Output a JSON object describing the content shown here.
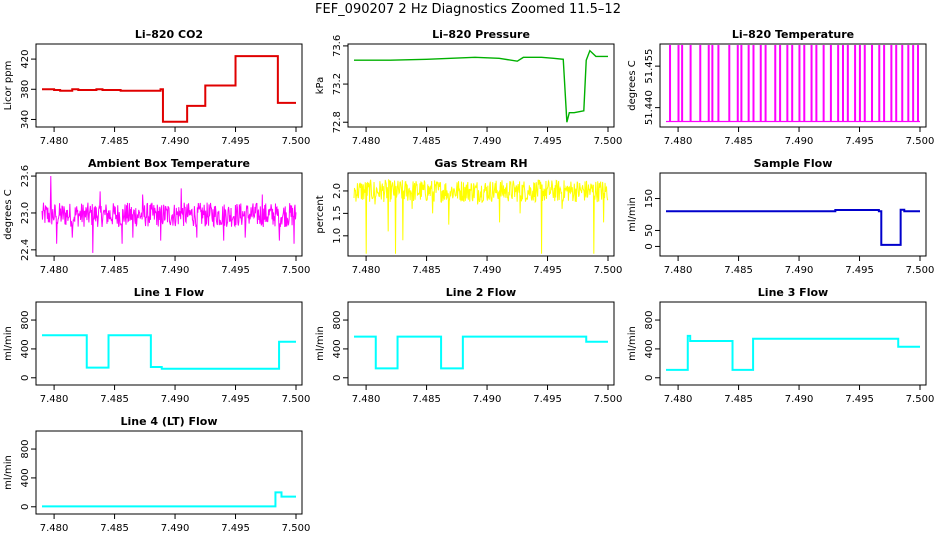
{
  "title": "FEF_090207  2 Hz Diagnostics Zoomed 11.5–12",
  "chart_data": [
    {
      "type": "line",
      "title": "Li–820 CO2",
      "ylabel": "Licor ppm",
      "color": "#e00000",
      "xlim": [
        7.479,
        7.5
      ],
      "xticks": [
        "7.480",
        "7.485",
        "7.490",
        "7.495",
        "7.500"
      ],
      "ylim": [
        330,
        440
      ],
      "yticks": [
        "340",
        "380",
        "420"
      ],
      "series": [
        {
          "mode": "steps",
          "x": [
            7.479,
            7.48,
            7.4805,
            7.4815,
            7.482,
            7.4835,
            7.484,
            7.4855,
            7.486,
            7.4878,
            7.4888,
            7.489,
            7.4898,
            7.491,
            7.4925,
            7.4943,
            7.495,
            7.4982,
            7.4985,
            7.5
          ],
          "y": [
            380,
            379,
            378,
            380,
            379,
            380,
            379,
            378,
            378,
            378,
            380,
            337,
            337,
            358,
            385,
            385,
            424,
            424,
            362,
            362
          ]
        }
      ]
    },
    {
      "type": "line",
      "title": "Li–820 Pressure",
      "ylabel": "kPa",
      "color": "#00b000",
      "xlim": [
        7.479,
        7.5
      ],
      "xticks": [
        "7.480",
        "7.485",
        "7.490",
        "7.495",
        "7.500"
      ],
      "ylim": [
        72.75,
        73.62
      ],
      "yticks": [
        "72.8",
        "73.2",
        "73.6"
      ],
      "series": [
        {
          "mode": "line",
          "x": [
            7.479,
            7.482,
            7.485,
            7.487,
            7.489,
            7.491,
            7.4925,
            7.493,
            7.4945,
            7.4955,
            7.4963,
            7.4966,
            7.4968,
            7.4972,
            7.498,
            7.4982,
            7.4985,
            7.499,
            7.5
          ],
          "y": [
            73.45,
            73.45,
            73.46,
            73.47,
            73.48,
            73.47,
            73.44,
            73.48,
            73.48,
            73.47,
            73.46,
            72.8,
            72.9,
            72.9,
            72.92,
            73.45,
            73.55,
            73.49,
            73.49
          ]
        }
      ]
    },
    {
      "type": "line",
      "title": "Li–820 Temperature",
      "ylabel": "degrees C",
      "color": "#ff00ff",
      "xlim": [
        7.479,
        7.5
      ],
      "xticks": [
        "7.480",
        "7.485",
        "7.490",
        "7.495",
        "7.500"
      ],
      "ylim": [
        51.433,
        51.463
      ],
      "yticks": [
        "51.440",
        "51.455"
      ],
      "series": [
        {
          "mode": "spikes",
          "baseline": 51.435,
          "peak": 51.463,
          "x": [
            7.4793,
            7.48,
            7.4803,
            7.481,
            7.4818,
            7.4825,
            7.4828,
            7.4833,
            7.4842,
            7.4849,
            7.4852,
            7.4858,
            7.4862,
            7.4868,
            7.4872,
            7.488,
            7.4884,
            7.489,
            7.4894,
            7.49,
            7.4904,
            7.491,
            7.4914,
            7.492,
            7.4926,
            7.4932,
            7.4936,
            7.494,
            7.4946,
            7.495,
            7.4954,
            7.496,
            7.4966,
            7.497,
            7.4976,
            7.498,
            7.4985,
            7.499,
            7.4994,
            7.4998
          ]
        }
      ]
    },
    {
      "type": "line",
      "title": "Ambient Box Temperature",
      "ylabel": "degrees C",
      "color": "#ff00ff",
      "xlim": [
        7.479,
        7.5
      ],
      "xticks": [
        "7.480",
        "7.485",
        "7.490",
        "7.495",
        "7.500"
      ],
      "ylim": [
        22.3,
        23.65
      ],
      "yticks": [
        "22.4",
        "23.0",
        "23.6"
      ],
      "series": [
        {
          "mode": "noise",
          "center": 22.97,
          "amplitude": 0.2,
          "outliers": [
            [
              7.4797,
              23.6
            ],
            [
              7.4802,
              22.5
            ],
            [
              7.4815,
              22.6
            ],
            [
              7.4832,
              22.35
            ],
            [
              7.4838,
              23.35
            ],
            [
              7.4856,
              22.5
            ],
            [
              7.4865,
              22.6
            ],
            [
              7.4873,
              23.3
            ],
            [
              7.4888,
              22.55
            ],
            [
              7.4905,
              23.4
            ],
            [
              7.4918,
              22.6
            ],
            [
              7.494,
              22.55
            ],
            [
              7.4958,
              22.6
            ],
            [
              7.4972,
              23.3
            ],
            [
              7.4986,
              22.55
            ],
            [
              7.4998,
              22.5
            ]
          ],
          "x0": 7.479,
          "x1": 7.5
        }
      ]
    },
    {
      "type": "line",
      "title": "Gas Stream RH",
      "ylabel": "percent",
      "color": "#ffff00",
      "xlim": [
        7.479,
        7.5
      ],
      "xticks": [
        "7.480",
        "7.485",
        "7.490",
        "7.495",
        "7.500"
      ],
      "ylim": [
        0.55,
        2.4
      ],
      "yticks": [
        "1.0",
        "1.5",
        "2.0"
      ],
      "series": [
        {
          "mode": "noise",
          "center": 2.0,
          "amplitude": 0.25,
          "outliers": [
            [
              7.48,
              0.6
            ],
            [
              7.4807,
              1.7
            ],
            [
              7.4818,
              1.1
            ],
            [
              7.4824,
              0.6
            ],
            [
              7.483,
              0.9
            ],
            [
              7.4838,
              1.6
            ],
            [
              7.4855,
              1.5
            ],
            [
              7.4868,
              1.25
            ],
            [
              7.4892,
              1.7
            ],
            [
              7.491,
              1.3
            ],
            [
              7.4927,
              1.5
            ],
            [
              7.4945,
              0.6
            ],
            [
              7.4962,
              1.6
            ],
            [
              7.4988,
              0.6
            ],
            [
              7.4996,
              1.3
            ]
          ],
          "x0": 7.479,
          "x1": 7.5
        }
      ]
    },
    {
      "type": "line",
      "title": "Sample Flow",
      "ylabel": "ml/min",
      "color": "#0000cc",
      "xlim": [
        7.479,
        7.5
      ],
      "xticks": [
        "7.480",
        "7.485",
        "7.490",
        "7.495",
        "7.500"
      ],
      "ylim": [
        -30,
        230
      ],
      "yticks": [
        "0",
        "50",
        "150"
      ],
      "series": [
        {
          "mode": "steps",
          "x": [
            7.479,
            7.485,
            7.4905,
            7.4925,
            7.493,
            7.4966,
            7.4968,
            7.4982,
            7.4984,
            7.4987,
            7.5
          ],
          "y": [
            110,
            110,
            110,
            110,
            114,
            110,
            5,
            5,
            115,
            110,
            110
          ]
        }
      ]
    },
    {
      "type": "line",
      "title": "Line 1 Flow",
      "ylabel": "ml/min",
      "color": "#00ffff",
      "xlim": [
        7.479,
        7.5
      ],
      "xticks": [
        "7.480",
        "7.485",
        "7.490",
        "7.495",
        "7.500"
      ],
      "ylim": [
        -100,
        1050
      ],
      "yticks": [
        "0",
        "400",
        "800"
      ],
      "series": [
        {
          "mode": "steps",
          "x": [
            7.479,
            7.4827,
            7.4845,
            7.488,
            7.4889,
            7.4982,
            7.4986,
            7.5
          ],
          "y": [
            590,
            140,
            590,
            150,
            125,
            125,
            500,
            500
          ]
        }
      ]
    },
    {
      "type": "line",
      "title": "Line 2 Flow",
      "ylabel": "ml/min",
      "color": "#00ffff",
      "xlim": [
        7.479,
        7.5
      ],
      "xticks": [
        "7.480",
        "7.485",
        "7.490",
        "7.495",
        "7.500"
      ],
      "ylim": [
        -100,
        1050
      ],
      "yticks": [
        "0",
        "400",
        "800"
      ],
      "series": [
        {
          "mode": "steps",
          "x": [
            7.479,
            7.4808,
            7.4826,
            7.4862,
            7.488,
            7.4982,
            7.5
          ],
          "y": [
            570,
            130,
            570,
            130,
            570,
            500,
            500
          ]
        }
      ]
    },
    {
      "type": "line",
      "title": "Line 3 Flow",
      "ylabel": "ml/min",
      "color": "#00ffff",
      "xlim": [
        7.479,
        7.5
      ],
      "xticks": [
        "7.480",
        "7.485",
        "7.490",
        "7.495",
        "7.500"
      ],
      "ylim": [
        -100,
        1050
      ],
      "yticks": [
        "0",
        "400",
        "800"
      ],
      "series": [
        {
          "mode": "steps",
          "x": [
            7.479,
            7.4808,
            7.481,
            7.4845,
            7.4862,
            7.4982,
            7.5
          ],
          "y": [
            110,
            580,
            510,
            110,
            540,
            430,
            430
          ]
        }
      ]
    },
    {
      "type": "line",
      "title": "Line 4 (LT) Flow",
      "ylabel": "ml/min",
      "color": "#00ffff",
      "xlim": [
        7.479,
        7.5
      ],
      "xticks": [
        "7.480",
        "7.485",
        "7.490",
        "7.495",
        "7.500"
      ],
      "ylim": [
        -100,
        1050
      ],
      "yticks": [
        "0",
        "400",
        "800"
      ],
      "series": [
        {
          "mode": "steps",
          "x": [
            7.479,
            7.4981,
            7.4983,
            7.4988,
            7.5
          ],
          "y": [
            5,
            5,
            200,
            140,
            140
          ]
        }
      ]
    }
  ]
}
